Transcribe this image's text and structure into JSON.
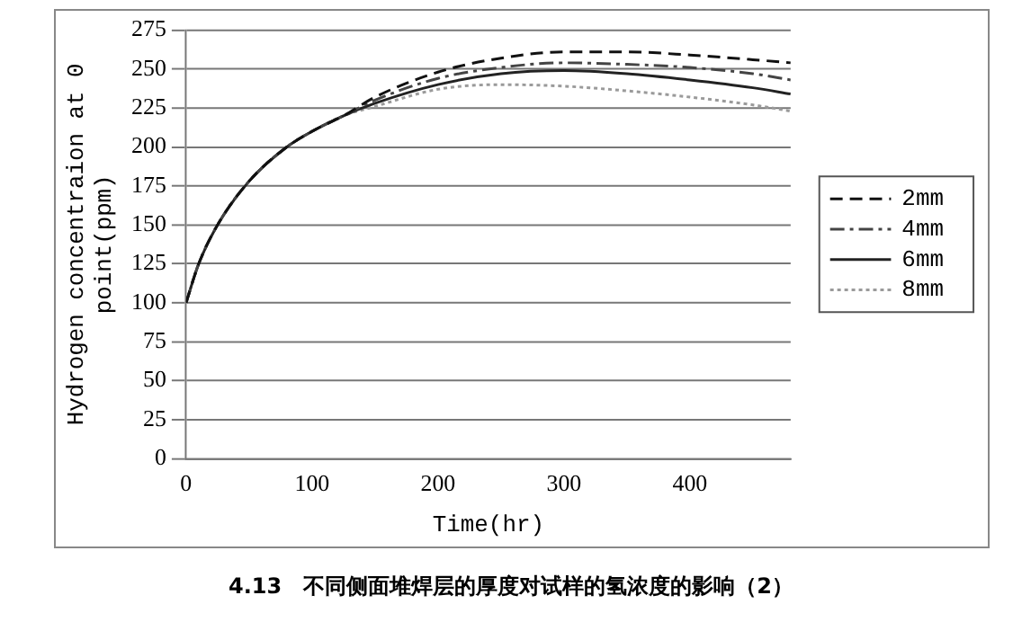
{
  "chart_data": {
    "type": "line",
    "xlabel": "Time(hr)",
    "ylabel": "Hydrogen concentraion at 0\npoint(ppm)",
    "xlim": [
      0,
      480
    ],
    "xticks": [
      0,
      100,
      200,
      300,
      400
    ],
    "ylim": [
      0,
      275
    ],
    "yticks": [
      0,
      25,
      50,
      75,
      100,
      125,
      150,
      175,
      200,
      225,
      250,
      275
    ],
    "grid": "y",
    "legend": "right",
    "marker": "none",
    "x": [
      0,
      10,
      25,
      50,
      80,
      100,
      125,
      150,
      200,
      250,
      300,
      350,
      400,
      450,
      480
    ],
    "series": [
      {
        "name": "2mm",
        "color": "#111111",
        "line_style": "dashed",
        "values": [
          100,
          125,
          150,
          178,
          200,
          210,
          220,
          232,
          248,
          257,
          261,
          261,
          259,
          256,
          254
        ]
      },
      {
        "name": "4mm",
        "color": "#444444",
        "line_style": "dashdot",
        "values": [
          100,
          125,
          150,
          178,
          200,
          210,
          220,
          230,
          244,
          251,
          254,
          253,
          251,
          247,
          243
        ]
      },
      {
        "name": "6mm",
        "color": "#222222",
        "line_style": "solid",
        "values": [
          100,
          125,
          150,
          178,
          200,
          210,
          220,
          228,
          240,
          247,
          249,
          247,
          243,
          238,
          234
        ]
      },
      {
        "name": "8mm",
        "color": "#9a9a9a",
        "line_style": "dotted",
        "values": [
          100,
          125,
          150,
          178,
          200,
          210,
          220,
          226,
          237,
          240,
          239,
          236,
          232,
          227,
          223
        ]
      }
    ],
    "annotations": [
      "4.13　不同侧面堆焊层的厚度对试样的氢浓度的影响（2）"
    ]
  }
}
